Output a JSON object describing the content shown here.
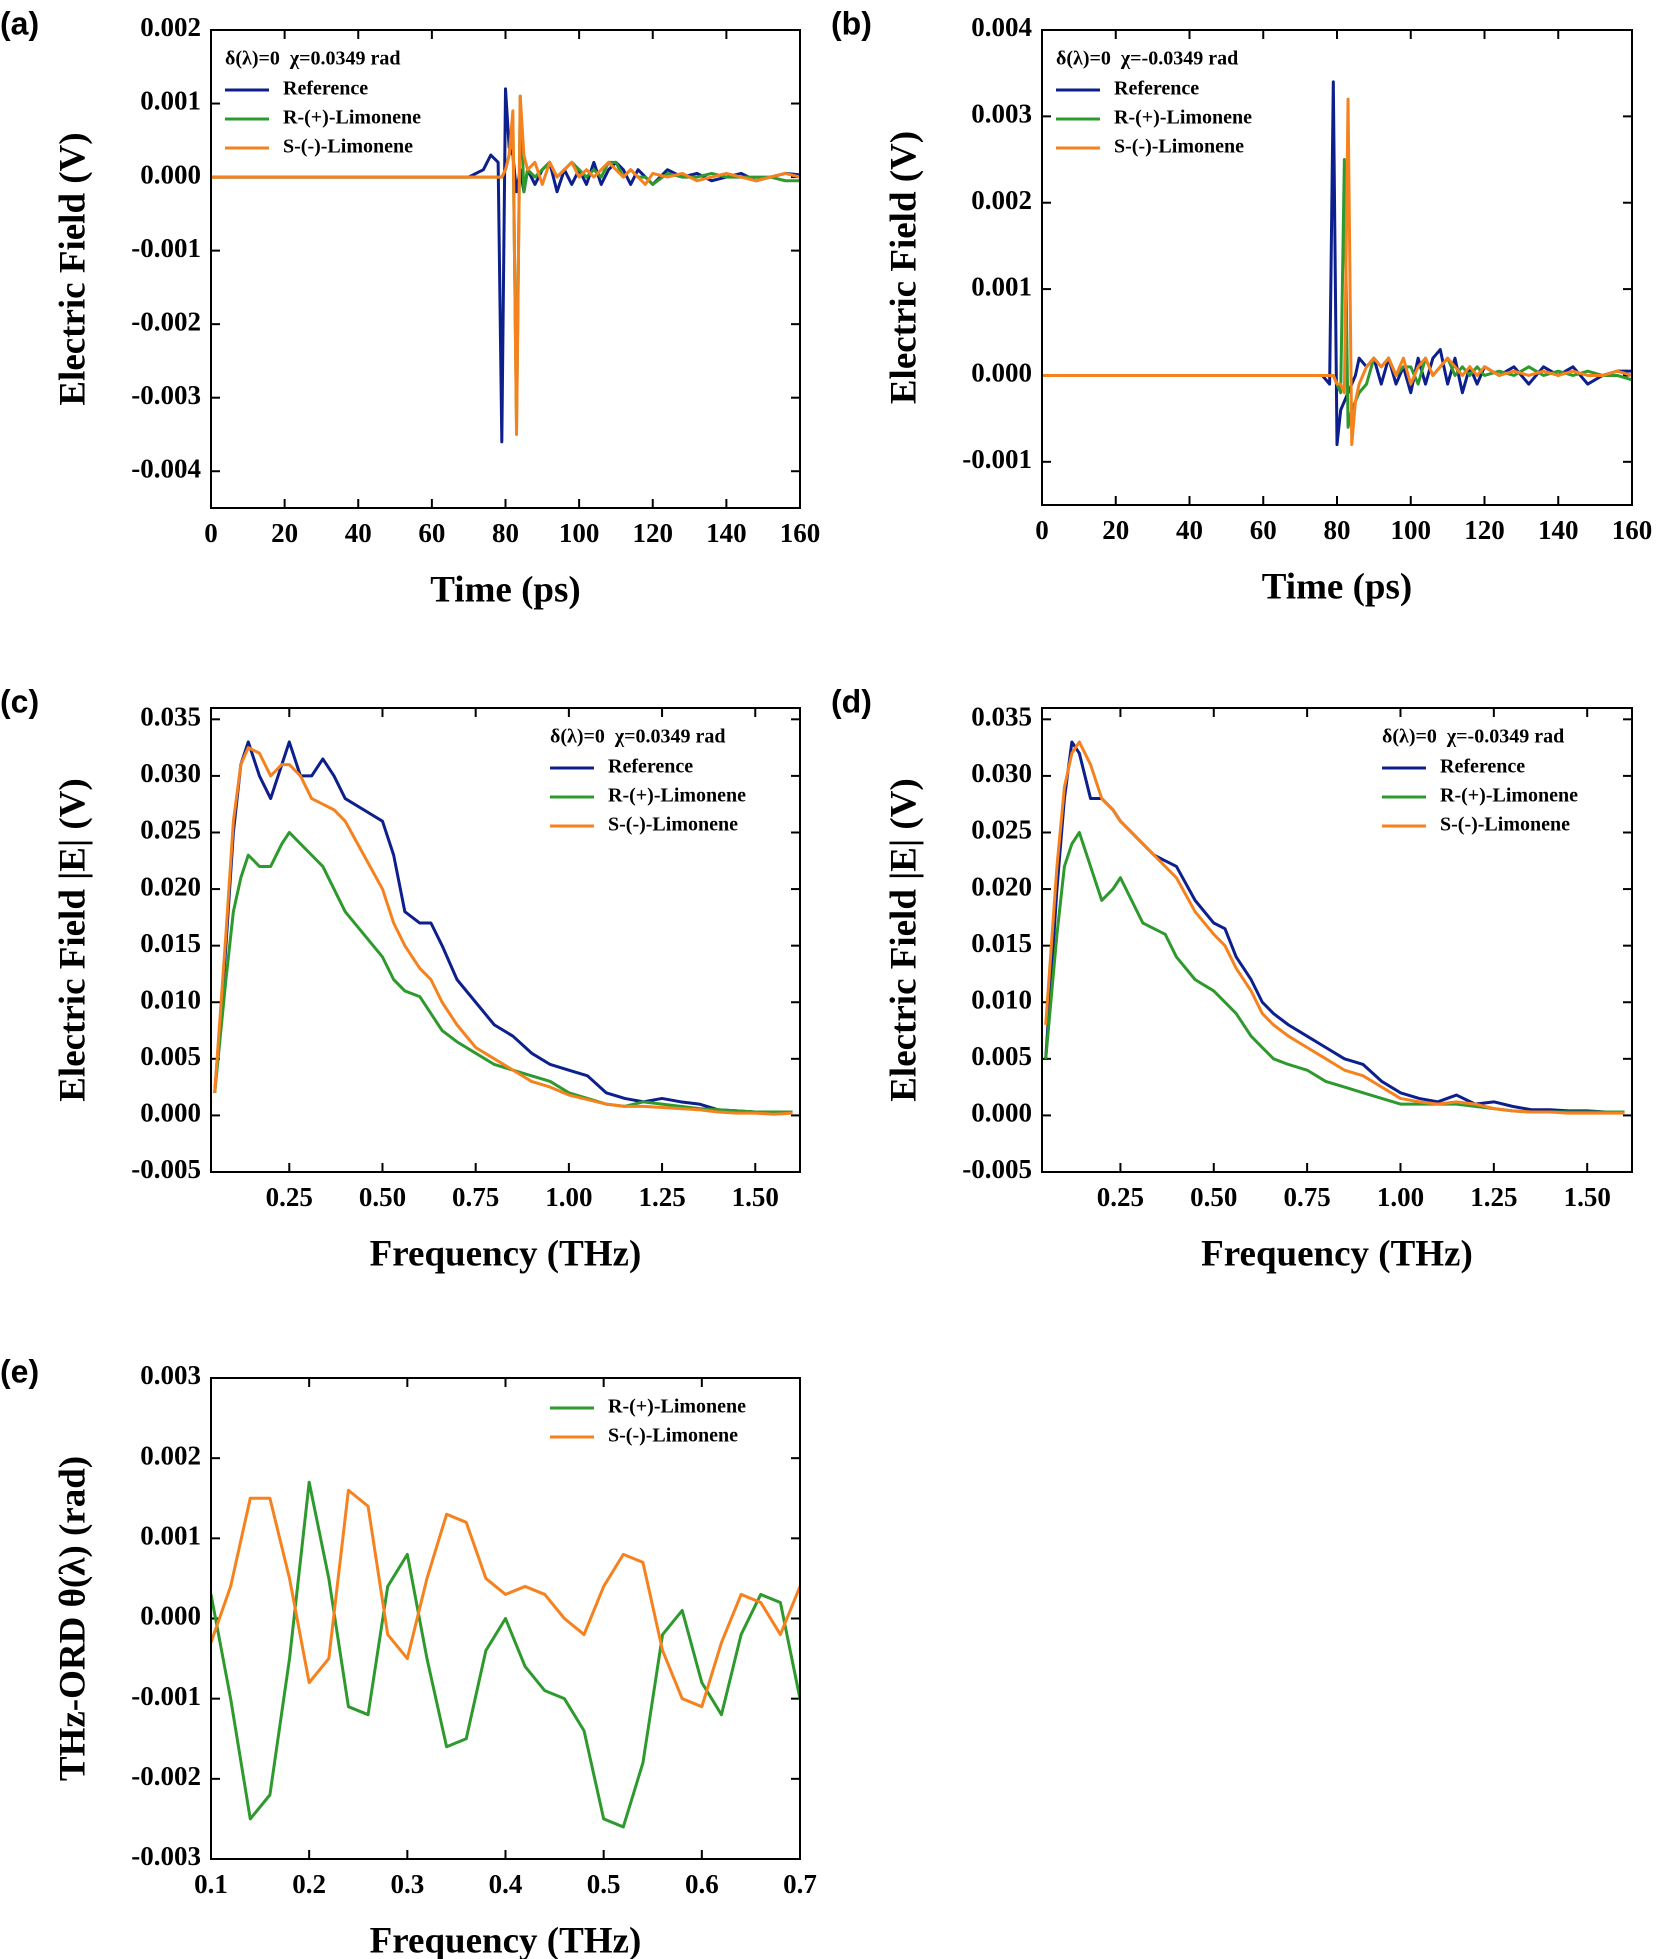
{
  "chart_data": [
    {
      "type": "line",
      "label": "(a)",
      "annotation": "δ(λ)=0  χ=0.0349 rad",
      "xlabel": "Time (ps)",
      "ylabel": "Electric Field (V)",
      "legend": "upper left",
      "x": [
        0,
        10,
        20,
        30,
        40,
        50,
        60,
        70,
        74,
        76,
        78,
        79,
        80,
        81,
        82,
        83,
        84,
        85,
        86,
        88,
        90,
        92,
        94,
        96,
        98,
        100,
        102,
        104,
        106,
        108,
        110,
        112,
        114,
        116,
        118,
        120,
        124,
        128,
        132,
        136,
        140,
        144,
        148,
        152,
        156,
        160
      ],
      "xlim": [
        0,
        160
      ],
      "xticks": [
        0,
        20,
        40,
        60,
        80,
        100,
        120,
        140,
        160
      ],
      "ylim": [
        -0.0045,
        0.002
      ],
      "yticks": [
        -0.004,
        -0.003,
        -0.002,
        -0.001,
        {
          "value": 0,
          "label": "0.000"
        },
        0.001,
        0.002
      ],
      "series": [
        {
          "name": "Reference",
          "color": "#0c1f8c",
          "values": [
            0,
            0,
            0,
            0,
            0,
            0,
            0,
            0,
            0.0001,
            0.0003,
            0.0002,
            -0.0036,
            0.0012,
            0.0004,
            0.0003,
            -0.0002,
            0.0001,
            -0.0002,
            0.0001,
            -0.0001,
            0.0001,
            0.0002,
            -0.0002,
            0.0001,
            -0.0001,
            0.0001,
            -0.0001,
            0.0002,
            -0.0001,
            0.0001,
            0.0002,
            0.0001,
            -0.0001,
            0.0001,
            0,
            -0.0001,
            0.0001,
            0,
            5e-05,
            -5e-05,
            0,
            5e-05,
            -5e-05,
            0,
            5e-05,
            3e-05
          ]
        },
        {
          "name": "R-(+)-Limonene",
          "color": "#2e9a2e",
          "values": [
            0,
            0,
            0,
            0,
            0,
            0,
            0,
            0,
            0,
            0,
            0,
            0,
            0.0001,
            0.0003,
            0.0008,
            -0.0034,
            0.0011,
            -0.0002,
            0.0001,
            0,
            0.0001,
            0.0002,
            0,
            0.0001,
            0.0002,
            0.0001,
            0,
            0.0001,
            0,
            0.0002,
            0.0002,
            0,
            0.0001,
            0,
            0,
            -0.0001,
            5e-05,
            0,
            0,
            5e-05,
            0,
            0,
            0,
            0,
            -5e-05,
            -5e-05
          ]
        },
        {
          "name": "S-(-)-Limonene",
          "color": "#f5821f",
          "values": [
            0,
            0,
            0,
            0,
            0,
            0,
            0,
            0,
            0,
            0,
            0,
            0,
            0.0001,
            0.0003,
            0.0009,
            -0.0035,
            0.0011,
            0.0003,
            0.0001,
            0.0002,
            -0.0001,
            0.0002,
            0,
            0.0001,
            0.0002,
            0,
            0.0001,
            0,
            0.0001,
            0.0002,
            0.0001,
            0,
            0.0001,
            0,
            -0.0001,
            5e-05,
            0,
            5e-05,
            -5e-05,
            0,
            5e-05,
            0,
            -5e-05,
            0,
            5e-05,
            0
          ]
        }
      ]
    },
    {
      "type": "line",
      "label": "(b)",
      "annotation": "δ(λ)=0  χ=-0.0349 rad",
      "xlabel": "Time (ps)",
      "ylabel": "Electric Field (V)",
      "legend": "upper left",
      "x": [
        0,
        10,
        20,
        30,
        40,
        50,
        60,
        70,
        74,
        76,
        78,
        79,
        80,
        81,
        82,
        83,
        84,
        85,
        86,
        88,
        90,
        92,
        94,
        96,
        98,
        100,
        102,
        104,
        106,
        108,
        110,
        112,
        114,
        116,
        118,
        120,
        124,
        128,
        132,
        136,
        140,
        144,
        148,
        152,
        156,
        160
      ],
      "xlim": [
        0,
        160
      ],
      "xticks": [
        0,
        20,
        40,
        60,
        80,
        100,
        120,
        140,
        160
      ],
      "ylim": [
        -0.0015,
        0.004
      ],
      "yticks": [
        -0.001,
        {
          "value": 0,
          "label": "0.000"
        },
        0.001,
        0.002,
        0.003,
        0.004
      ],
      "series": [
        {
          "name": "Reference",
          "color": "#0c1f8c",
          "values": [
            0,
            0,
            0,
            0,
            0,
            0,
            0,
            0,
            0,
            0,
            -0.0001,
            0.0034,
            -0.0008,
            -0.0004,
            -0.0003,
            -0.0002,
            -0.0001,
            0,
            0.0002,
            0.0001,
            0.0002,
            -0.0001,
            0.0002,
            -0.0001,
            0.0001,
            -0.0002,
            0.0002,
            -0.0001,
            0.0002,
            0.0003,
            -0.0001,
            0.0002,
            -0.0002,
            0.0001,
            -0.0001,
            0.0001,
            0,
            0.0001,
            -0.0001,
            0.0001,
            0,
            0.0001,
            -0.0001,
            0,
            5e-05,
            5e-05
          ]
        },
        {
          "name": "R-(+)-Limonene",
          "color": "#2e9a2e",
          "values": [
            0,
            0,
            0,
            0,
            0,
            0,
            0,
            0,
            0,
            0,
            0,
            0,
            -0.0001,
            -0.0002,
            0.0025,
            -0.0006,
            -0.0004,
            -0.0003,
            -0.0002,
            -0.0001,
            0.0002,
            0.0001,
            0.0002,
            0,
            0.0001,
            0.0001,
            -0.0001,
            0.0002,
            0,
            0.0001,
            0.0002,
            0,
            0.0001,
            0,
            0.0001,
            0,
            5e-05,
            0,
            0.0001,
            0,
            5e-05,
            0,
            5e-05,
            0,
            0,
            -5e-05
          ]
        },
        {
          "name": "S-(-)-Limonene",
          "color": "#f5821f",
          "values": [
            0,
            0,
            0,
            0,
            0,
            0,
            0,
            0,
            0,
            0,
            0,
            0,
            -0.0001,
            -0.0001,
            -0.0002,
            0.0032,
            -0.0008,
            -0.0003,
            -0.0001,
            0.0001,
            0.0002,
            0.0001,
            0.0002,
            0,
            0.0002,
            -0.0001,
            0.0001,
            0.0002,
            0,
            0.0001,
            0.0002,
            0.0001,
            0,
            0.0001,
            0,
            0.0001,
            0,
            5e-05,
            0,
            5e-05,
            0,
            5e-05,
            0,
            0,
            5e-05,
            0
          ]
        }
      ]
    },
    {
      "type": "line",
      "label": "(c)",
      "annotation": "δ(λ)=0  χ=0.0349 rad",
      "xlabel": "Frequency (THz)",
      "ylabel": "Electric Field |E| (V)",
      "legend": "upper right",
      "x": [
        0.05,
        0.08,
        0.1,
        0.12,
        0.14,
        0.17,
        0.2,
        0.23,
        0.25,
        0.28,
        0.31,
        0.34,
        0.37,
        0.4,
        0.45,
        0.5,
        0.53,
        0.56,
        0.6,
        0.63,
        0.66,
        0.7,
        0.75,
        0.8,
        0.85,
        0.9,
        0.95,
        1.0,
        1.05,
        1.1,
        1.15,
        1.2,
        1.25,
        1.3,
        1.35,
        1.4,
        1.45,
        1.5,
        1.55,
        1.6
      ],
      "xlim": [
        0.04,
        1.62
      ],
      "xticks": [
        0.25,
        {
          "value": 0.5,
          "label": "0.50"
        },
        0.75,
        {
          "value": 1,
          "label": "1.00"
        },
        1.25,
        {
          "value": 1.5,
          "label": "1.50"
        }
      ],
      "ylim": [
        -0.005,
        0.036
      ],
      "yticks": [
        -0.005,
        {
          "value": 0,
          "label": "0.000"
        },
        0.005,
        {
          "value": 0.01,
          "label": "0.010"
        },
        0.015,
        {
          "value": 0.02,
          "label": "0.020"
        },
        0.025,
        {
          "value": 0.03,
          "label": "0.030"
        },
        0.035
      ],
      "series": [
        {
          "name": "Reference",
          "color": "#0c1f8c",
          "values": [
            0.002,
            0.015,
            0.025,
            0.031,
            0.033,
            0.03,
            0.028,
            0.031,
            0.033,
            0.03,
            0.03,
            0.0315,
            0.03,
            0.028,
            0.027,
            0.026,
            0.023,
            0.018,
            0.017,
            0.017,
            0.015,
            0.012,
            0.01,
            0.008,
            0.007,
            0.0055,
            0.0045,
            0.004,
            0.0035,
            0.002,
            0.0015,
            0.0012,
            0.0015,
            0.0012,
            0.001,
            0.0005,
            0.0004,
            0.0003,
            0.0003,
            0.0003
          ]
        },
        {
          "name": "R-(+)-Limonene",
          "color": "#2e9a2e",
          "values": [
            0.002,
            0.012,
            0.018,
            0.021,
            0.023,
            0.022,
            0.022,
            0.024,
            0.025,
            0.024,
            0.023,
            0.022,
            0.02,
            0.018,
            0.016,
            0.014,
            0.012,
            0.011,
            0.0105,
            0.009,
            0.0075,
            0.0065,
            0.0055,
            0.0045,
            0.004,
            0.0035,
            0.003,
            0.002,
            0.0015,
            0.001,
            0.0008,
            0.0012,
            0.001,
            0.0008,
            0.0006,
            0.0005,
            0.0004,
            0.0003,
            0.0003,
            0.0003
          ]
        },
        {
          "name": "S-(-)-Limonene",
          "color": "#f5821f",
          "values": [
            0.002,
            0.016,
            0.026,
            0.031,
            0.0325,
            0.032,
            0.03,
            0.031,
            0.031,
            0.03,
            0.028,
            0.0275,
            0.027,
            0.026,
            0.023,
            0.02,
            0.017,
            0.015,
            0.013,
            0.012,
            0.01,
            0.008,
            0.006,
            0.005,
            0.004,
            0.003,
            0.0025,
            0.0018,
            0.0014,
            0.001,
            0.0008,
            0.0008,
            0.0007,
            0.0006,
            0.0005,
            0.0003,
            0.0002,
            0.0002,
            0.0001,
            0.0002
          ]
        }
      ]
    },
    {
      "type": "line",
      "label": "(d)",
      "annotation": "δ(λ)=0  χ=-0.0349 rad",
      "xlabel": "Frequency (THz)",
      "ylabel": "Electric Field |E| (V)",
      "legend": "upper right",
      "x": [
        0.05,
        0.08,
        0.1,
        0.12,
        0.14,
        0.17,
        0.2,
        0.23,
        0.25,
        0.28,
        0.31,
        0.34,
        0.37,
        0.4,
        0.45,
        0.5,
        0.53,
        0.56,
        0.6,
        0.63,
        0.66,
        0.7,
        0.75,
        0.8,
        0.85,
        0.9,
        0.95,
        1.0,
        1.05,
        1.1,
        1.15,
        1.2,
        1.25,
        1.3,
        1.35,
        1.4,
        1.45,
        1.5,
        1.55,
        1.6
      ],
      "xlim": [
        0.04,
        1.62
      ],
      "xticks": [
        0.25,
        {
          "value": 0.5,
          "label": "0.50"
        },
        0.75,
        {
          "value": 1,
          "label": "1.00"
        },
        1.25,
        {
          "value": 1.5,
          "label": "1.50"
        }
      ],
      "ylim": [
        -0.005,
        0.036
      ],
      "yticks": [
        -0.005,
        {
          "value": 0,
          "label": "0.000"
        },
        0.005,
        {
          "value": 0.01,
          "label": "0.010"
        },
        0.015,
        {
          "value": 0.02,
          "label": "0.020"
        },
        0.025,
        {
          "value": 0.03,
          "label": "0.030"
        },
        0.035
      ],
      "series": [
        {
          "name": "Reference",
          "color": "#0c1f8c",
          "values": [
            0.005,
            0.02,
            0.028,
            0.033,
            0.032,
            0.028,
            0.028,
            0.027,
            0.026,
            0.025,
            0.024,
            0.023,
            0.0225,
            0.022,
            0.019,
            0.017,
            0.0165,
            0.014,
            0.012,
            0.01,
            0.009,
            0.008,
            0.007,
            0.006,
            0.005,
            0.0045,
            0.003,
            0.002,
            0.0015,
            0.0012,
            0.0018,
            0.001,
            0.0012,
            0.0008,
            0.0005,
            0.0005,
            0.0004,
            0.0004,
            0.0003,
            0.0003
          ]
        },
        {
          "name": "R-(+)-Limonene",
          "color": "#2e9a2e",
          "values": [
            0.005,
            0.016,
            0.022,
            0.024,
            0.025,
            0.022,
            0.019,
            0.02,
            0.021,
            0.019,
            0.017,
            0.0165,
            0.016,
            0.014,
            0.012,
            0.011,
            0.01,
            0.009,
            0.007,
            0.006,
            0.005,
            0.0045,
            0.004,
            0.003,
            0.0025,
            0.002,
            0.0015,
            0.001,
            0.001,
            0.001,
            0.001,
            0.0008,
            0.0006,
            0.0004,
            0.0003,
            0.0003,
            0.0003,
            0.0003,
            0.0003,
            0.0003
          ]
        },
        {
          "name": "S-(-)-Limonene",
          "color": "#f5821f",
          "values": [
            0.008,
            0.022,
            0.029,
            0.032,
            0.033,
            0.031,
            0.028,
            0.027,
            0.026,
            0.025,
            0.024,
            0.023,
            0.022,
            0.021,
            0.018,
            0.016,
            0.015,
            0.013,
            0.011,
            0.009,
            0.008,
            0.007,
            0.006,
            0.005,
            0.004,
            0.0035,
            0.0025,
            0.0015,
            0.0012,
            0.001,
            0.0012,
            0.001,
            0.0006,
            0.0004,
            0.0003,
            0.0003,
            0.0002,
            0.0002,
            0.0002,
            0.0002
          ]
        }
      ]
    },
    {
      "type": "line",
      "label": "(e)",
      "xlabel": "Frequency (THz)",
      "ylabel": "THz-ORD θ(λ) (rad)",
      "legend": "upper right",
      "x": [
        0.1,
        0.12,
        0.14,
        0.16,
        0.18,
        0.2,
        0.22,
        0.24,
        0.26,
        0.28,
        0.3,
        0.32,
        0.34,
        0.36,
        0.38,
        0.4,
        0.42,
        0.44,
        0.46,
        0.48,
        0.5,
        0.52,
        0.54,
        0.56,
        0.58,
        0.6,
        0.62,
        0.64,
        0.66,
        0.68,
        0.7
      ],
      "xlim": [
        0.1,
        0.7
      ],
      "xticks": [
        0.1,
        0.2,
        0.3,
        0.4,
        0.5,
        0.6,
        0.7
      ],
      "ylim": [
        -0.003,
        0.003
      ],
      "yticks": [
        -0.003,
        -0.002,
        -0.001,
        {
          "value": 0,
          "label": "0.000"
        },
        0.001,
        0.002,
        0.003
      ],
      "series": [
        {
          "name": "R-(+)-Limonene",
          "color": "#2e9a2e",
          "values": [
            0.0003,
            -0.001,
            -0.0025,
            -0.0022,
            -0.0005,
            0.0017,
            0.0005,
            -0.0011,
            -0.0012,
            0.0004,
            0.0008,
            -0.0005,
            -0.0016,
            -0.0015,
            -0.0004,
            0,
            -0.0006,
            -0.0009,
            -0.001,
            -0.0014,
            -0.0025,
            -0.0026,
            -0.0018,
            -0.0002,
            0.0001,
            -0.0008,
            -0.0012,
            -0.0002,
            0.0003,
            0.0002,
            -0.001
          ]
        },
        {
          "name": "S-(-)-Limonene",
          "color": "#f5821f",
          "values": [
            -0.0003,
            0.0004,
            0.0015,
            0.0015,
            0.0005,
            -0.0008,
            -0.0005,
            0.0016,
            0.0014,
            -0.0002,
            -0.0005,
            0.0005,
            0.0013,
            0.0012,
            0.0005,
            0.0003,
            0.0004,
            0.0003,
            0,
            -0.0002,
            0.0004,
            0.0008,
            0.0007,
            -0.0004,
            -0.001,
            -0.0011,
            -0.0003,
            0.0003,
            0.0002,
            -0.0002,
            0.0004
          ]
        }
      ]
    }
  ]
}
